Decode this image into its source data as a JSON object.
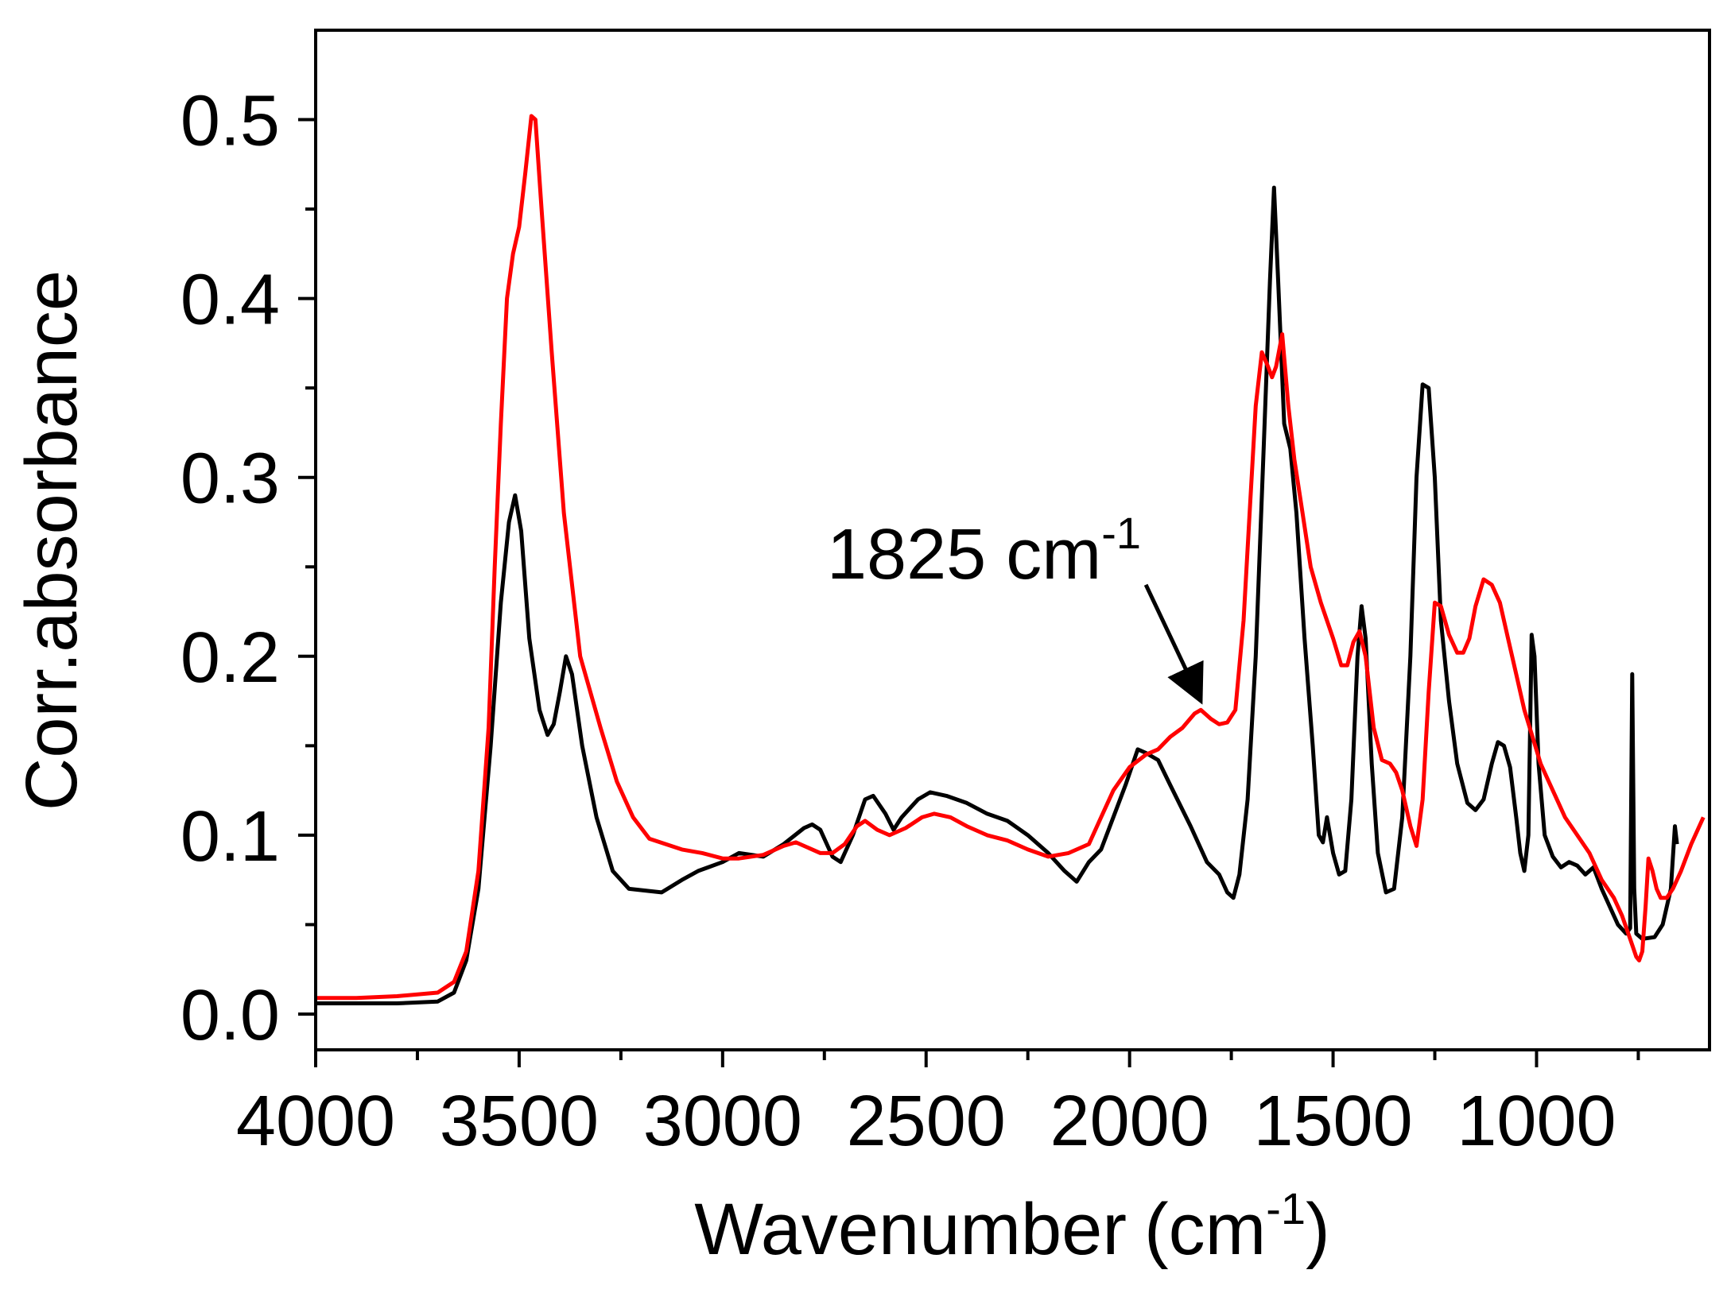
{
  "chart_data": {
    "type": "line",
    "title": "",
    "xlabel": "Wavenumber",
    "xlabel_unit_base": "(cm",
    "xlabel_unit_sup": "-1",
    "xlabel_unit_close": ")",
    "ylabel": "Corr.absorbance",
    "xlim": [
      4000,
      575
    ],
    "ylim": [
      -0.02,
      0.55
    ],
    "x_ticks": [
      4000,
      3500,
      3000,
      2500,
      2000,
      1500,
      1000
    ],
    "x_tick_labels": [
      "4000",
      "3500",
      "3000",
      "2500",
      "2000",
      "1500",
      "1000"
    ],
    "x_minor_ticks": [
      3750,
      3250,
      2750,
      2250,
      1750,
      1250,
      750
    ],
    "y_ticks": [
      0.0,
      0.1,
      0.2,
      0.3,
      0.4,
      0.5
    ],
    "y_tick_labels": [
      "0.0",
      "0.1",
      "0.2",
      "0.3",
      "0.4",
      "0.5"
    ],
    "y_minor_ticks": [
      0.05,
      0.15,
      0.25,
      0.35,
      0.45
    ],
    "annotation": {
      "text": "1825 cm",
      "sup": "-1",
      "arrow_from": [
        1960,
        0.24
      ],
      "arrow_to": [
        1825,
        0.175
      ]
    },
    "series": [
      {
        "name": "black spectrum",
        "color": "#000000",
        "points": [
          [
            4000,
            0.006
          ],
          [
            3900,
            0.006
          ],
          [
            3800,
            0.006
          ],
          [
            3700,
            0.007
          ],
          [
            3660,
            0.012
          ],
          [
            3630,
            0.03
          ],
          [
            3600,
            0.07
          ],
          [
            3570,
            0.15
          ],
          [
            3545,
            0.23
          ],
          [
            3525,
            0.275
          ],
          [
            3510,
            0.29
          ],
          [
            3495,
            0.27
          ],
          [
            3475,
            0.21
          ],
          [
            3450,
            0.17
          ],
          [
            3430,
            0.156
          ],
          [
            3415,
            0.162
          ],
          [
            3400,
            0.18
          ],
          [
            3385,
            0.2
          ],
          [
            3370,
            0.19
          ],
          [
            3345,
            0.15
          ],
          [
            3310,
            0.11
          ],
          [
            3270,
            0.08
          ],
          [
            3230,
            0.07
          ],
          [
            3150,
            0.068
          ],
          [
            3100,
            0.075
          ],
          [
            3060,
            0.08
          ],
          [
            3000,
            0.085
          ],
          [
            2960,
            0.09
          ],
          [
            2900,
            0.088
          ],
          [
            2850,
            0.095
          ],
          [
            2800,
            0.104
          ],
          [
            2780,
            0.106
          ],
          [
            2760,
            0.103
          ],
          [
            2730,
            0.088
          ],
          [
            2710,
            0.085
          ],
          [
            2680,
            0.1
          ],
          [
            2650,
            0.12
          ],
          [
            2630,
            0.122
          ],
          [
            2600,
            0.112
          ],
          [
            2580,
            0.103
          ],
          [
            2560,
            0.11
          ],
          [
            2520,
            0.12
          ],
          [
            2490,
            0.124
          ],
          [
            2450,
            0.122
          ],
          [
            2400,
            0.118
          ],
          [
            2350,
            0.112
          ],
          [
            2300,
            0.108
          ],
          [
            2250,
            0.1
          ],
          [
            2200,
            0.09
          ],
          [
            2160,
            0.08
          ],
          [
            2130,
            0.074
          ],
          [
            2100,
            0.085
          ],
          [
            2070,
            0.092
          ],
          [
            2040,
            0.11
          ],
          [
            2010,
            0.128
          ],
          [
            1980,
            0.148
          ],
          [
            1960,
            0.146
          ],
          [
            1930,
            0.142
          ],
          [
            1900,
            0.128
          ],
          [
            1850,
            0.105
          ],
          [
            1810,
            0.085
          ],
          [
            1780,
            0.078
          ],
          [
            1760,
            0.068
          ],
          [
            1745,
            0.065
          ],
          [
            1730,
            0.078
          ],
          [
            1710,
            0.12
          ],
          [
            1690,
            0.2
          ],
          [
            1670,
            0.32
          ],
          [
            1655,
            0.41
          ],
          [
            1645,
            0.462
          ],
          [
            1635,
            0.41
          ],
          [
            1620,
            0.33
          ],
          [
            1605,
            0.316
          ],
          [
            1590,
            0.28
          ],
          [
            1570,
            0.21
          ],
          [
            1550,
            0.15
          ],
          [
            1535,
            0.1
          ],
          [
            1525,
            0.096
          ],
          [
            1515,
            0.11
          ],
          [
            1500,
            0.09
          ],
          [
            1485,
            0.078
          ],
          [
            1470,
            0.08
          ],
          [
            1455,
            0.12
          ],
          [
            1440,
            0.2
          ],
          [
            1430,
            0.228
          ],
          [
            1420,
            0.21
          ],
          [
            1405,
            0.14
          ],
          [
            1390,
            0.09
          ],
          [
            1370,
            0.068
          ],
          [
            1350,
            0.07
          ],
          [
            1330,
            0.11
          ],
          [
            1310,
            0.2
          ],
          [
            1295,
            0.3
          ],
          [
            1280,
            0.352
          ],
          [
            1265,
            0.35
          ],
          [
            1250,
            0.3
          ],
          [
            1235,
            0.22
          ],
          [
            1215,
            0.175
          ],
          [
            1195,
            0.14
          ],
          [
            1170,
            0.118
          ],
          [
            1150,
            0.114
          ],
          [
            1130,
            0.12
          ],
          [
            1110,
            0.14
          ],
          [
            1095,
            0.152
          ],
          [
            1080,
            0.15
          ],
          [
            1065,
            0.138
          ],
          [
            1050,
            0.11
          ],
          [
            1040,
            0.09
          ],
          [
            1030,
            0.08
          ],
          [
            1020,
            0.1
          ],
          [
            1012,
            0.212
          ],
          [
            1005,
            0.2
          ],
          [
            995,
            0.14
          ],
          [
            980,
            0.1
          ],
          [
            960,
            0.088
          ],
          [
            940,
            0.082
          ],
          [
            920,
            0.085
          ],
          [
            900,
            0.083
          ],
          [
            880,
            0.078
          ],
          [
            860,
            0.082
          ],
          [
            840,
            0.07
          ],
          [
            820,
            0.06
          ],
          [
            800,
            0.05
          ],
          [
            780,
            0.045
          ],
          [
            770,
            0.048
          ],
          [
            765,
            0.19
          ],
          [
            760,
            0.07
          ],
          [
            755,
            0.045
          ],
          [
            740,
            0.042
          ],
          [
            710,
            0.043
          ],
          [
            690,
            0.05
          ],
          [
            670,
            0.07
          ],
          [
            660,
            0.105
          ],
          [
            655,
            0.095
          ]
        ]
      },
      {
        "name": "red spectrum",
        "color": "#ff0000",
        "points": [
          [
            4000,
            0.009
          ],
          [
            3900,
            0.009
          ],
          [
            3800,
            0.01
          ],
          [
            3700,
            0.012
          ],
          [
            3660,
            0.018
          ],
          [
            3630,
            0.035
          ],
          [
            3600,
            0.08
          ],
          [
            3575,
            0.16
          ],
          [
            3560,
            0.25
          ],
          [
            3545,
            0.33
          ],
          [
            3530,
            0.4
          ],
          [
            3515,
            0.425
          ],
          [
            3500,
            0.44
          ],
          [
            3485,
            0.47
          ],
          [
            3470,
            0.502
          ],
          [
            3460,
            0.5
          ],
          [
            3445,
            0.45
          ],
          [
            3420,
            0.37
          ],
          [
            3390,
            0.28
          ],
          [
            3350,
            0.2
          ],
          [
            3300,
            0.16
          ],
          [
            3260,
            0.13
          ],
          [
            3220,
            0.11
          ],
          [
            3180,
            0.098
          ],
          [
            3100,
            0.092
          ],
          [
            3050,
            0.09
          ],
          [
            3000,
            0.087
          ],
          [
            2960,
            0.087
          ],
          [
            2900,
            0.089
          ],
          [
            2850,
            0.094
          ],
          [
            2820,
            0.096
          ],
          [
            2800,
            0.094
          ],
          [
            2760,
            0.09
          ],
          [
            2730,
            0.09
          ],
          [
            2700,
            0.095
          ],
          [
            2670,
            0.105
          ],
          [
            2650,
            0.108
          ],
          [
            2620,
            0.103
          ],
          [
            2590,
            0.1
          ],
          [
            2550,
            0.104
          ],
          [
            2510,
            0.11
          ],
          [
            2480,
            0.112
          ],
          [
            2440,
            0.11
          ],
          [
            2400,
            0.105
          ],
          [
            2350,
            0.1
          ],
          [
            2300,
            0.097
          ],
          [
            2250,
            0.092
          ],
          [
            2200,
            0.088
          ],
          [
            2150,
            0.09
          ],
          [
            2100,
            0.095
          ],
          [
            2070,
            0.11
          ],
          [
            2040,
            0.125
          ],
          [
            2000,
            0.138
          ],
          [
            1960,
            0.145
          ],
          [
            1930,
            0.148
          ],
          [
            1900,
            0.155
          ],
          [
            1870,
            0.16
          ],
          [
            1840,
            0.168
          ],
          [
            1825,
            0.17
          ],
          [
            1800,
            0.165
          ],
          [
            1780,
            0.162
          ],
          [
            1760,
            0.163
          ],
          [
            1740,
            0.17
          ],
          [
            1720,
            0.22
          ],
          [
            1705,
            0.28
          ],
          [
            1690,
            0.34
          ],
          [
            1675,
            0.37
          ],
          [
            1660,
            0.362
          ],
          [
            1650,
            0.356
          ],
          [
            1640,
            0.362
          ],
          [
            1625,
            0.38
          ],
          [
            1610,
            0.34
          ],
          [
            1595,
            0.31
          ],
          [
            1575,
            0.28
          ],
          [
            1555,
            0.25
          ],
          [
            1530,
            0.23
          ],
          [
            1500,
            0.21
          ],
          [
            1480,
            0.195
          ],
          [
            1465,
            0.195
          ],
          [
            1450,
            0.208
          ],
          [
            1435,
            0.214
          ],
          [
            1420,
            0.2
          ],
          [
            1400,
            0.16
          ],
          [
            1380,
            0.142
          ],
          [
            1360,
            0.14
          ],
          [
            1345,
            0.135
          ],
          [
            1330,
            0.125
          ],
          [
            1310,
            0.105
          ],
          [
            1295,
            0.094
          ],
          [
            1280,
            0.12
          ],
          [
            1265,
            0.18
          ],
          [
            1250,
            0.23
          ],
          [
            1235,
            0.228
          ],
          [
            1215,
            0.212
          ],
          [
            1195,
            0.202
          ],
          [
            1180,
            0.202
          ],
          [
            1165,
            0.21
          ],
          [
            1150,
            0.228
          ],
          [
            1130,
            0.243
          ],
          [
            1110,
            0.24
          ],
          [
            1090,
            0.23
          ],
          [
            1070,
            0.21
          ],
          [
            1050,
            0.19
          ],
          [
            1030,
            0.17
          ],
          [
            1010,
            0.155
          ],
          [
            990,
            0.14
          ],
          [
            970,
            0.13
          ],
          [
            950,
            0.12
          ],
          [
            930,
            0.11
          ],
          [
            900,
            0.1
          ],
          [
            870,
            0.09
          ],
          [
            840,
            0.075
          ],
          [
            810,
            0.065
          ],
          [
            790,
            0.055
          ],
          [
            770,
            0.042
          ],
          [
            755,
            0.032
          ],
          [
            748,
            0.03
          ],
          [
            740,
            0.035
          ],
          [
            732,
            0.06
          ],
          [
            725,
            0.087
          ],
          [
            715,
            0.08
          ],
          [
            705,
            0.07
          ],
          [
            695,
            0.065
          ],
          [
            680,
            0.065
          ],
          [
            665,
            0.07
          ],
          [
            645,
            0.08
          ],
          [
            620,
            0.095
          ],
          [
            590,
            0.11
          ]
        ]
      }
    ]
  }
}
